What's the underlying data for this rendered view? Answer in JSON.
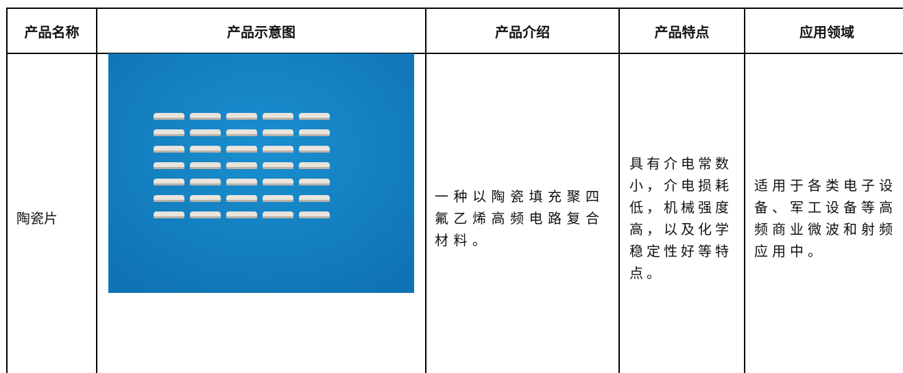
{
  "table": {
    "headers": [
      "产品名称",
      "产品示意图",
      "产品介绍",
      "产品特点",
      "应用领域"
    ],
    "rows": [
      {
        "name": "陶瓷片",
        "intro": "一种以陶瓷填充聚四氟乙烯高频电路复合材料。",
        "features": "具有介电常数小，介电损耗低，机械强度高，以及化学稳定性好等特点。",
        "applications": "适用于各类电子设备、军工设备等高频商业微波和射频应用中。"
      }
    ]
  }
}
